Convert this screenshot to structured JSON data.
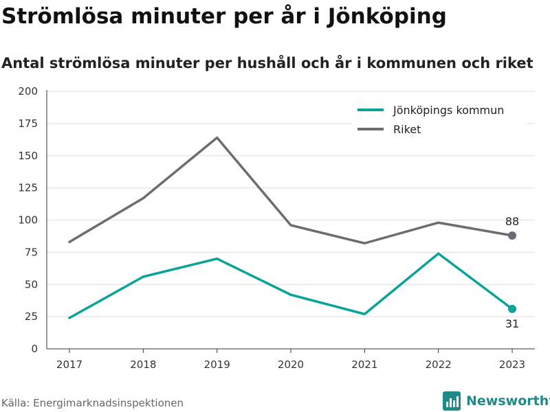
{
  "header": {
    "title": "Strömlösa minuter per år i Jönköping",
    "subtitle": "Antal strömlösa minuter per hushåll och år i kommunen och riket"
  },
  "footer": {
    "source": "Källa: Energimarknadsinspektionen",
    "brand": "Newsworthy"
  },
  "colors": {
    "jonkoping": "#0aa39a",
    "riket": "#6d6c72",
    "grid": "#dddddd",
    "axis": "#333333",
    "brand": "#1e8a8a"
  },
  "chart_data": {
    "type": "line",
    "title": "Strömlösa minuter per år i Jönköping",
    "subtitle": "Antal strömlösa minuter per hushåll och år i kommunen och riket",
    "xlabel": "",
    "ylabel": "",
    "categories": [
      "2017",
      "2018",
      "2019",
      "2020",
      "2021",
      "2022",
      "2023"
    ],
    "ylim": [
      0,
      200
    ],
    "yticks": [
      0,
      25,
      50,
      75,
      100,
      125,
      150,
      175,
      200
    ],
    "grid": true,
    "legend_position": "top-right",
    "series": [
      {
        "name": "Jönköpings kommun",
        "color": "#0aa39a",
        "values": [
          24,
          56,
          70,
          42,
          27,
          74,
          31
        ],
        "end_label": "31",
        "end_label_position": "below"
      },
      {
        "name": "Riket",
        "color": "#6d6c72",
        "values": [
          83,
          117,
          164,
          96,
          82,
          98,
          88
        ],
        "end_label": "88",
        "end_label_position": "above"
      }
    ]
  }
}
